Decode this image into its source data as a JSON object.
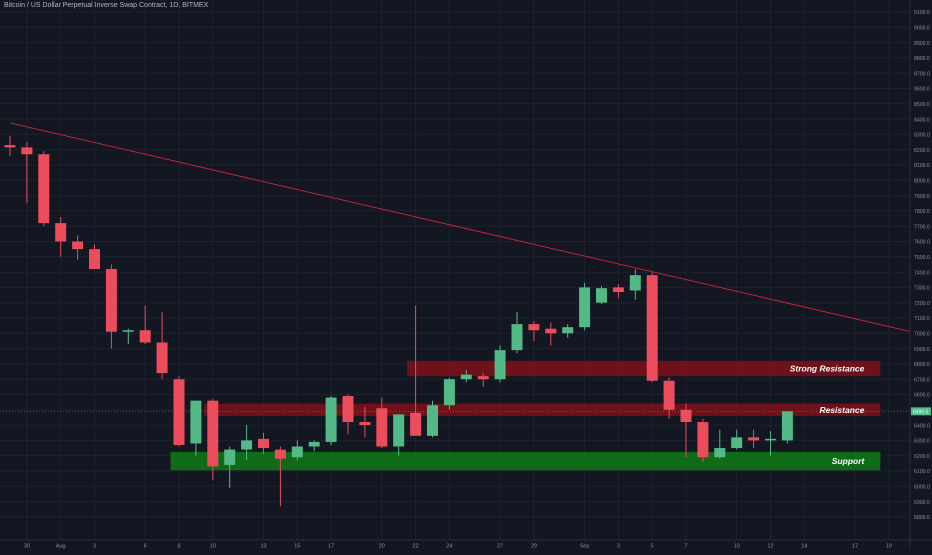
{
  "title": "Bitcoin / US Dollar Perpetual Inverse Swap Contract, 1D, BITMEX",
  "colors": {
    "background": "#131722",
    "grid": "#1e2230",
    "up": "#53b987",
    "down": "#eb4d5c",
    "trendline": "#c0233b",
    "resistance_zone": "#7f1119",
    "support_zone": "#0f7a16",
    "axis_text": "#8e919a",
    "price_badge": "#53b987"
  },
  "chart_data": {
    "type": "candlestick",
    "title": "Bitcoin / US Dollar Perpetual Inverse Swap Contract, 1D, BITMEX",
    "ylim": [
      5750,
      9180
    ],
    "y_ticks": [
      5800.0,
      5900.0,
      6000.0,
      6100.0,
      6200.0,
      6300.0,
      6400.0,
      6500.0,
      6600.0,
      6700.0,
      6800.0,
      6900.0,
      7000.0,
      7100.0,
      7200.0,
      7300.0,
      7400.0,
      7500.0,
      7600.0,
      7700.0,
      7800.0,
      7900.0,
      8000.0,
      8100.0,
      8200.0,
      8300.0,
      8400.0,
      8500.0,
      8600.0,
      8700.0,
      8800.0,
      8900.0,
      9000.0,
      9100.0
    ],
    "x_ticks": [
      {
        "index": 1,
        "label": "30"
      },
      {
        "index": 3,
        "label": "Aug"
      },
      {
        "index": 5,
        "label": "3"
      },
      {
        "index": 8,
        "label": "6"
      },
      {
        "index": 10,
        "label": "8"
      },
      {
        "index": 12,
        "label": "10"
      },
      {
        "index": 15,
        "label": "13"
      },
      {
        "index": 17,
        "label": "15"
      },
      {
        "index": 19,
        "label": "17"
      },
      {
        "index": 22,
        "label": "20"
      },
      {
        "index": 24,
        "label": "22"
      },
      {
        "index": 26,
        "label": "24"
      },
      {
        "index": 29,
        "label": "27"
      },
      {
        "index": 31,
        "label": "29"
      },
      {
        "index": 34,
        "label": "Sep"
      },
      {
        "index": 36,
        "label": "3"
      },
      {
        "index": 38,
        "label": "5"
      },
      {
        "index": 40,
        "label": "7"
      },
      {
        "index": 43,
        "label": "10"
      },
      {
        "index": 45,
        "label": "12"
      },
      {
        "index": 47,
        "label": "14"
      },
      {
        "index": 50,
        "label": "17"
      },
      {
        "index": 52,
        "label": "19"
      }
    ],
    "candles": [
      {
        "o": 8230,
        "h": 8290,
        "l": 8160,
        "c": 8215
      },
      {
        "o": 8215,
        "h": 8250,
        "l": 7850,
        "c": 8170
      },
      {
        "o": 8170,
        "h": 8190,
        "l": 7700,
        "c": 7720
      },
      {
        "o": 7720,
        "h": 7760,
        "l": 7500,
        "c": 7600
      },
      {
        "o": 7600,
        "h": 7640,
        "l": 7480,
        "c": 7550
      },
      {
        "o": 7550,
        "h": 7580,
        "l": 7420,
        "c": 7420
      },
      {
        "o": 7420,
        "h": 7450,
        "l": 6900,
        "c": 7010
      },
      {
        "o": 7010,
        "h": 7030,
        "l": 6930,
        "c": 7020
      },
      {
        "o": 7020,
        "h": 7180,
        "l": 6930,
        "c": 6940
      },
      {
        "o": 6940,
        "h": 7140,
        "l": 6700,
        "c": 6740
      },
      {
        "o": 6700,
        "h": 6720,
        "l": 6260,
        "c": 6270
      },
      {
        "o": 6280,
        "h": 6560,
        "l": 6200,
        "c": 6560
      },
      {
        "o": 6560,
        "h": 6570,
        "l": 6040,
        "c": 6130
      },
      {
        "o": 6140,
        "h": 6260,
        "l": 5990,
        "c": 6240
      },
      {
        "o": 6240,
        "h": 6400,
        "l": 6170,
        "c": 6300
      },
      {
        "o": 6310,
        "h": 6350,
        "l": 6210,
        "c": 6250
      },
      {
        "o": 6240,
        "h": 6260,
        "l": 5870,
        "c": 6180
      },
      {
        "o": 6190,
        "h": 6300,
        "l": 6170,
        "c": 6260
      },
      {
        "o": 6260,
        "h": 6300,
        "l": 6230,
        "c": 6290
      },
      {
        "o": 6290,
        "h": 6590,
        "l": 6270,
        "c": 6580
      },
      {
        "o": 6590,
        "h": 6600,
        "l": 6340,
        "c": 6420
      },
      {
        "o": 6420,
        "h": 6520,
        "l": 6320,
        "c": 6400
      },
      {
        "o": 6510,
        "h": 6580,
        "l": 6250,
        "c": 6260
      },
      {
        "o": 6260,
        "h": 6470,
        "l": 6200,
        "c": 6470
      },
      {
        "o": 6480,
        "h": 7180,
        "l": 6360,
        "c": 6330
      },
      {
        "o": 6330,
        "h": 6560,
        "l": 6320,
        "c": 6530
      },
      {
        "o": 6530,
        "h": 6710,
        "l": 6500,
        "c": 6700
      },
      {
        "o": 6700,
        "h": 6760,
        "l": 6680,
        "c": 6730
      },
      {
        "o": 6720,
        "h": 6740,
        "l": 6650,
        "c": 6700
      },
      {
        "o": 6700,
        "h": 6920,
        "l": 6680,
        "c": 6890
      },
      {
        "o": 6890,
        "h": 7140,
        "l": 6870,
        "c": 7060
      },
      {
        "o": 7060,
        "h": 7080,
        "l": 6950,
        "c": 7020
      },
      {
        "o": 7030,
        "h": 7070,
        "l": 6920,
        "c": 7000
      },
      {
        "o": 7000,
        "h": 7060,
        "l": 6970,
        "c": 7040
      },
      {
        "o": 7040,
        "h": 7330,
        "l": 7020,
        "c": 7300
      },
      {
        "o": 7200,
        "h": 7310,
        "l": 7190,
        "c": 7295
      },
      {
        "o": 7300,
        "h": 7320,
        "l": 7230,
        "c": 7270
      },
      {
        "o": 7280,
        "h": 7420,
        "l": 7220,
        "c": 7380
      },
      {
        "o": 7380,
        "h": 7400,
        "l": 6680,
        "c": 6690
      },
      {
        "o": 6690,
        "h": 6710,
        "l": 6440,
        "c": 6500
      },
      {
        "o": 6500,
        "h": 6540,
        "l": 6190,
        "c": 6420
      },
      {
        "o": 6420,
        "h": 6440,
        "l": 6160,
        "c": 6190
      },
      {
        "o": 6190,
        "h": 6370,
        "l": 6180,
        "c": 6250
      },
      {
        "o": 6250,
        "h": 6370,
        "l": 6240,
        "c": 6320
      },
      {
        "o": 6320,
        "h": 6370,
        "l": 6250,
        "c": 6300
      },
      {
        "o": 6300,
        "h": 6360,
        "l": 6200,
        "c": 6310
      },
      {
        "o": 6300,
        "h": 6490,
        "l": 6280,
        "c": 6490
      }
    ],
    "trendline": {
      "start": {
        "index": 0,
        "value": 8375
      },
      "end": {
        "index": 54.5,
        "value": 6980
      }
    },
    "zones": [
      {
        "label": "Strong Resistance",
        "from": 24,
        "to": 51,
        "low": 6720,
        "high": 6820,
        "color": "resistance"
      },
      {
        "label": "Resistance",
        "from": 12,
        "to": 51,
        "low": 6460,
        "high": 6540,
        "color": "resistance"
      },
      {
        "label": "Support",
        "from": 10,
        "to": 51,
        "low": 6105,
        "high": 6225,
        "color": "support"
      }
    ],
    "last_price": {
      "label": "6490.5",
      "value": 6490
    }
  }
}
